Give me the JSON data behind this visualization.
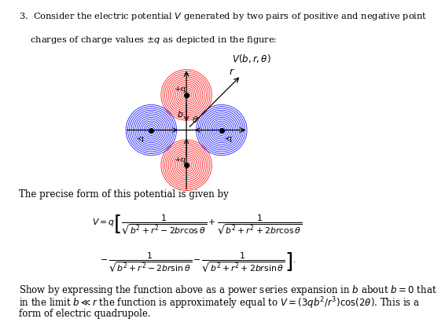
{
  "bg_color": "#ffffff",
  "text_color": "#000000",
  "red_color": "#ff0000",
  "blue_color": "#0000ff",
  "num_circles": 14,
  "circle_max_r": 0.72,
  "charge_dist": 1.0,
  "intro_line1": "3.  Consider the electric potential $V$ generated by two pairs of positive and negative point",
  "intro_line2": "    charges of charge values $\\pm q$ as depicted in the figure:",
  "vbrt_label": "$V(b,r,\\theta)$",
  "r_label": "$r$",
  "b_label": "$b$",
  "theta_label": "$\\theta$",
  "precise_text": "The precise form of this potential is given by",
  "conclusion1": "Show by expressing the function above as a power series expansion in $b$ about $b=0$ that",
  "conclusion2": "in the limit $b\\ll r$ the function is approximately equal to $V=(3qb^2/r^3)\\cos(2\\theta)$. This is a",
  "conclusion3": "form of electric quadrupole."
}
